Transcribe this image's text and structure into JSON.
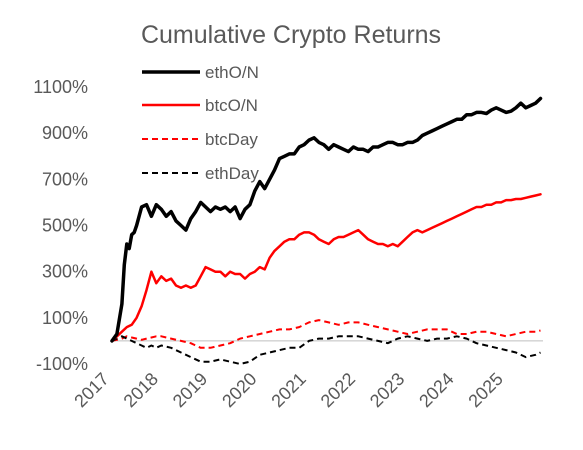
{
  "chart_data": {
    "type": "line",
    "title": "Cumulative Crypto Returns",
    "xlabel": "",
    "ylabel": "",
    "ylim": [
      -100,
      1100
    ],
    "y_ticks": [
      "1100%",
      "900%",
      "700%",
      "500%",
      "300%",
      "100%",
      "-100%"
    ],
    "y_tick_values": [
      1100,
      900,
      700,
      500,
      300,
      100,
      -100
    ],
    "xlim": [
      2017.0,
      2025.75
    ],
    "x_ticks": [
      "2017",
      "2018",
      "2019",
      "2020",
      "2021",
      "2022",
      "2023",
      "2024",
      "2025"
    ],
    "x_tick_values": [
      2017,
      2018,
      2019,
      2020,
      2021,
      2022,
      2023,
      2024,
      2025
    ],
    "grid": "zero-line only",
    "legend_position": "top-center",
    "series": [
      {
        "name": "ethO/N",
        "color": "#000000",
        "style": "solid",
        "x": [
          2017.0,
          2017.1,
          2017.2,
          2017.25,
          2017.3,
          2017.35,
          2017.4,
          2017.45,
          2017.5,
          2017.6,
          2017.7,
          2017.8,
          2017.9,
          2018.0,
          2018.1,
          2018.2,
          2018.3,
          2018.4,
          2018.5,
          2018.6,
          2018.7,
          2018.8,
          2018.9,
          2019.0,
          2019.1,
          2019.2,
          2019.3,
          2019.4,
          2019.5,
          2019.6,
          2019.7,
          2019.8,
          2019.9,
          2020.0,
          2020.1,
          2020.2,
          2020.3,
          2020.4,
          2020.5,
          2020.6,
          2020.7,
          2020.8,
          2020.9,
          2021.0,
          2021.1,
          2021.2,
          2021.3,
          2021.4,
          2021.5,
          2021.6,
          2021.7,
          2021.8,
          2021.9,
          2022.0,
          2022.1,
          2022.2,
          2022.3,
          2022.4,
          2022.5,
          2022.6,
          2022.7,
          2022.8,
          2022.9,
          2023.0,
          2023.1,
          2023.2,
          2023.3,
          2023.4,
          2023.5,
          2023.6,
          2023.7,
          2023.8,
          2023.9,
          2024.0,
          2024.1,
          2024.2,
          2024.3,
          2024.4,
          2024.5,
          2024.6,
          2024.7,
          2024.8,
          2024.9,
          2025.0,
          2025.1,
          2025.2,
          2025.3,
          2025.4,
          2025.5,
          2025.6,
          2025.7
        ],
        "values": [
          0,
          30,
          160,
          330,
          420,
          400,
          460,
          470,
          500,
          580,
          590,
          540,
          590,
          570,
          540,
          560,
          520,
          500,
          480,
          530,
          560,
          600,
          580,
          560,
          580,
          570,
          580,
          560,
          580,
          530,
          570,
          590,
          650,
          690,
          660,
          700,
          740,
          790,
          800,
          810,
          810,
          840,
          850,
          870,
          880,
          860,
          850,
          830,
          850,
          840,
          830,
          820,
          840,
          830,
          830,
          820,
          840,
          840,
          850,
          860,
          860,
          850,
          850,
          860,
          860,
          870,
          890,
          900,
          910,
          920,
          930,
          940,
          950,
          960,
          960,
          980,
          980,
          990,
          990,
          985,
          1000,
          1010,
          1000,
          990,
          995,
          1010,
          1030,
          1010,
          1020,
          1030,
          1050
        ]
      },
      {
        "name": "btcO/N",
        "color": "#ff0000",
        "style": "solid",
        "x": [
          2017.0,
          2017.1,
          2017.2,
          2017.3,
          2017.4,
          2017.5,
          2017.6,
          2017.7,
          2017.8,
          2017.9,
          2018.0,
          2018.1,
          2018.2,
          2018.3,
          2018.4,
          2018.5,
          2018.6,
          2018.7,
          2018.8,
          2018.9,
          2019.0,
          2019.1,
          2019.2,
          2019.3,
          2019.4,
          2019.5,
          2019.6,
          2019.7,
          2019.8,
          2019.9,
          2020.0,
          2020.1,
          2020.2,
          2020.3,
          2020.4,
          2020.5,
          2020.6,
          2020.7,
          2020.8,
          2020.9,
          2021.0,
          2021.1,
          2021.2,
          2021.3,
          2021.4,
          2021.5,
          2021.6,
          2021.7,
          2021.8,
          2021.9,
          2022.0,
          2022.1,
          2022.2,
          2022.3,
          2022.4,
          2022.5,
          2022.6,
          2022.7,
          2022.8,
          2022.9,
          2023.0,
          2023.1,
          2023.2,
          2023.3,
          2023.4,
          2023.5,
          2023.6,
          2023.7,
          2023.8,
          2023.9,
          2024.0,
          2024.1,
          2024.2,
          2024.3,
          2024.4,
          2024.5,
          2024.6,
          2024.7,
          2024.8,
          2024.9,
          2025.0,
          2025.1,
          2025.2,
          2025.3,
          2025.4,
          2025.5,
          2025.6,
          2025.7
        ],
        "values": [
          0,
          20,
          40,
          60,
          70,
          100,
          150,
          220,
          300,
          250,
          280,
          260,
          270,
          240,
          230,
          240,
          230,
          240,
          280,
          320,
          310,
          300,
          300,
          280,
          300,
          290,
          290,
          270,
          290,
          300,
          320,
          310,
          360,
          390,
          410,
          430,
          440,
          440,
          460,
          470,
          470,
          460,
          440,
          430,
          420,
          440,
          450,
          450,
          460,
          470,
          480,
          460,
          440,
          430,
          420,
          420,
          410,
          420,
          410,
          430,
          450,
          470,
          480,
          470,
          480,
          490,
          500,
          510,
          520,
          530,
          540,
          550,
          560,
          570,
          580,
          580,
          590,
          590,
          600,
          600,
          610,
          610,
          615,
          615,
          620,
          625,
          630,
          635
        ]
      },
      {
        "name": "btcDay",
        "color": "#ff0000",
        "style": "dashed",
        "x": [
          2017.0,
          2017.1,
          2017.2,
          2017.3,
          2017.4,
          2017.5,
          2017.6,
          2017.7,
          2017.8,
          2017.9,
          2018.0,
          2018.2,
          2018.4,
          2018.6,
          2018.8,
          2019.0,
          2019.2,
          2019.4,
          2019.6,
          2019.8,
          2020.0,
          2020.2,
          2020.4,
          2020.6,
          2020.8,
          2021.0,
          2021.2,
          2021.4,
          2021.6,
          2021.8,
          2022.0,
          2022.2,
          2022.4,
          2022.6,
          2022.8,
          2023.0,
          2023.2,
          2023.4,
          2023.6,
          2023.8,
          2024.0,
          2024.2,
          2024.4,
          2024.6,
          2024.8,
          2025.0,
          2025.2,
          2025.4,
          2025.6,
          2025.7
        ],
        "values": [
          0,
          5,
          10,
          20,
          15,
          10,
          5,
          10,
          15,
          20,
          20,
          10,
          0,
          -10,
          -30,
          -30,
          -20,
          -10,
          10,
          20,
          30,
          40,
          50,
          50,
          60,
          80,
          90,
          80,
          70,
          80,
          80,
          70,
          60,
          50,
          40,
          30,
          40,
          50,
          50,
          50,
          30,
          30,
          40,
          40,
          30,
          20,
          30,
          40,
          40,
          45
        ]
      },
      {
        "name": "ethDay",
        "color": "#000000",
        "style": "dashed",
        "x": [
          2017.0,
          2017.1,
          2017.2,
          2017.3,
          2017.4,
          2017.5,
          2017.6,
          2017.7,
          2017.8,
          2017.9,
          2018.0,
          2018.2,
          2018.4,
          2018.6,
          2018.8,
          2019.0,
          2019.2,
          2019.4,
          2019.6,
          2019.8,
          2020.0,
          2020.2,
          2020.4,
          2020.6,
          2020.8,
          2021.0,
          2021.2,
          2021.4,
          2021.6,
          2021.8,
          2022.0,
          2022.2,
          2022.4,
          2022.6,
          2022.8,
          2023.0,
          2023.2,
          2023.4,
          2023.6,
          2023.8,
          2024.0,
          2024.2,
          2024.4,
          2024.6,
          2024.8,
          2025.0,
          2025.2,
          2025.4,
          2025.6,
          2025.7
        ],
        "values": [
          0,
          10,
          20,
          10,
          0,
          -10,
          -20,
          -30,
          -20,
          -30,
          -20,
          -30,
          -50,
          -70,
          -90,
          -90,
          -80,
          -90,
          -100,
          -90,
          -60,
          -50,
          -40,
          -30,
          -30,
          0,
          10,
          10,
          20,
          20,
          20,
          10,
          0,
          -10,
          10,
          20,
          10,
          0,
          10,
          10,
          20,
          10,
          -10,
          -20,
          -30,
          -40,
          -50,
          -70,
          -60,
          -50
        ]
      }
    ]
  }
}
